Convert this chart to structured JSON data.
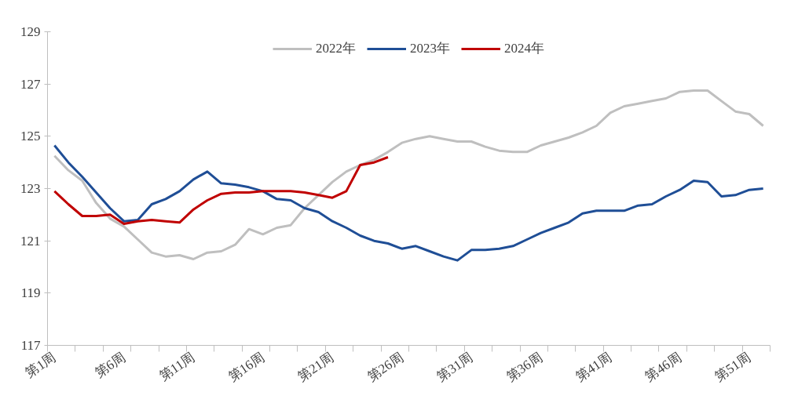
{
  "chart_data": {
    "type": "line",
    "categories": [
      "第1周",
      null,
      null,
      null,
      null,
      "第6周",
      null,
      null,
      null,
      null,
      "第11周",
      null,
      null,
      null,
      null,
      "第16周",
      null,
      null,
      null,
      null,
      "第21周",
      null,
      null,
      null,
      null,
      "第26周",
      null,
      null,
      null,
      null,
      "第31周",
      null,
      null,
      null,
      null,
      "第36周",
      null,
      null,
      null,
      null,
      "第41周",
      null,
      null,
      null,
      null,
      "第46周",
      null,
      null,
      null,
      null,
      "第51周",
      null
    ],
    "ylim": [
      117,
      129
    ],
    "yticks": [
      117,
      119,
      121,
      123,
      125,
      127,
      129
    ],
    "grid": false,
    "legend": "top",
    "marker": "none",
    "line_style": "solid",
    "series": [
      {
        "name": "2022年",
        "color": "#bfbfbf",
        "values": [
          124.25,
          123.7,
          123.3,
          122.45,
          121.85,
          121.55,
          121.05,
          120.55,
          120.4,
          120.45,
          120.3,
          120.55,
          120.6,
          120.85,
          121.45,
          121.25,
          121.5,
          121.6,
          122.25,
          122.75,
          123.25,
          123.65,
          123.9,
          124.1,
          124.4,
          124.75,
          124.9,
          125.0,
          124.9,
          124.8,
          124.8,
          124.6,
          124.45,
          124.4,
          124.4,
          124.65,
          124.8,
          124.95,
          125.15,
          125.4,
          125.9,
          126.15,
          126.25,
          126.35,
          126.45,
          126.7,
          126.75,
          126.75,
          126.35,
          125.95,
          125.85,
          125.4
        ]
      },
      {
        "name": "2023年",
        "color": "#1f4e96",
        "values": [
          124.65,
          124.0,
          123.45,
          122.85,
          122.25,
          121.75,
          121.8,
          122.4,
          122.6,
          122.9,
          123.35,
          123.65,
          123.2,
          123.15,
          123.05,
          122.9,
          122.6,
          122.55,
          122.25,
          122.1,
          121.75,
          121.5,
          121.2,
          121.0,
          120.9,
          120.7,
          120.8,
          120.6,
          120.4,
          120.25,
          120.65,
          120.65,
          120.7,
          120.8,
          121.05,
          121.3,
          121.5,
          121.7,
          122.05,
          122.15,
          122.15,
          122.15,
          122.35,
          122.4,
          122.7,
          122.95,
          123.3,
          123.25,
          122.7,
          122.75,
          122.95,
          123.0
        ]
      },
      {
        "name": "2024年",
        "color": "#c00000",
        "values": [
          122.9,
          122.4,
          121.95,
          121.95,
          122.0,
          121.65,
          121.75,
          121.8,
          121.75,
          121.7,
          122.2,
          122.55,
          122.8,
          122.85,
          122.85,
          122.9,
          122.9,
          122.9,
          122.85,
          122.75,
          122.65,
          122.9,
          123.9,
          124.0,
          124.2,
          null,
          null,
          null,
          null,
          null,
          null,
          null,
          null,
          null,
          null,
          null,
          null,
          null,
          null,
          null,
          null,
          null,
          null,
          null,
          null,
          null,
          null,
          null,
          null,
          null,
          null,
          null
        ]
      }
    ]
  }
}
